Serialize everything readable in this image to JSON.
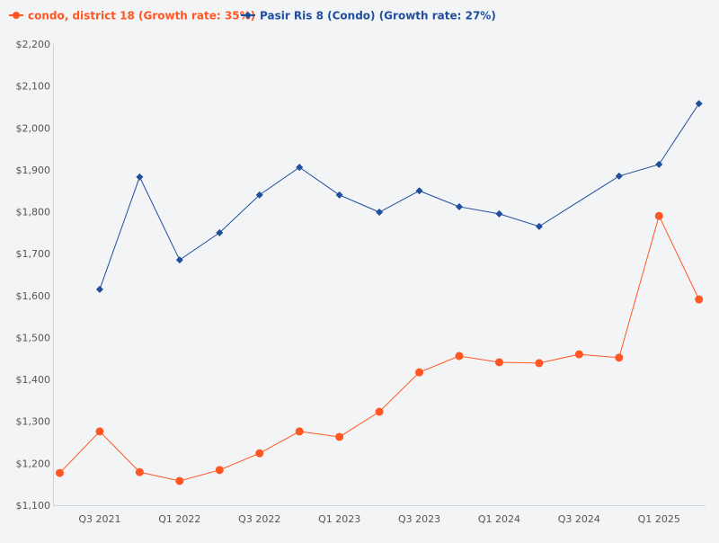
{
  "chart_data": {
    "type": "line",
    "title": "",
    "xlabel": "",
    "ylabel": "",
    "categories": [
      "Q2 2021",
      "Q3 2021",
      "Q4 2021",
      "Q1 2022",
      "Q2 2022",
      "Q3 2022",
      "Q4 2022",
      "Q1 2023",
      "Q2 2023",
      "Q3 2023",
      "Q4 2023",
      "Q1 2024",
      "Q2 2024",
      "Q3 2024",
      "Q4 2024",
      "Q1 2025",
      "Q2 2025"
    ],
    "xtick_labels": [
      "Q3 2021",
      "Q1 2022",
      "Q3 2022",
      "Q1 2023",
      "Q3 2023",
      "Q1 2024",
      "Q3 2024",
      "Q1 2025"
    ],
    "ylim": [
      1100,
      2200
    ],
    "yticks": [
      "$1,100",
      "$1,200",
      "$1,300",
      "$1,400",
      "$1,500",
      "$1,600",
      "$1,700",
      "$1,800",
      "$1,900",
      "$2,000",
      "$2,100",
      "$2,200"
    ],
    "grid": false,
    "legend_position": "top-left",
    "series": [
      {
        "name": "condo, district 18 (Growth rate: 35%)",
        "color": "#ff5722",
        "marker": "circle",
        "values": [
          1177,
          1276,
          1179,
          1158,
          1184,
          1224,
          1276,
          1263,
          1323,
          1417,
          1456,
          1441,
          1439,
          1460,
          1452,
          1790,
          1591
        ]
      },
      {
        "name": "Pasir Ris 8 (Condo) (Growth rate: 27%)",
        "color": "#1f4e9c",
        "marker": "diamond",
        "values": [
          null,
          1615,
          1883,
          1685,
          1750,
          1840,
          1906,
          1840,
          1799,
          1850,
          1812,
          1795,
          1765,
          null,
          1885,
          1913,
          2058
        ]
      }
    ]
  }
}
